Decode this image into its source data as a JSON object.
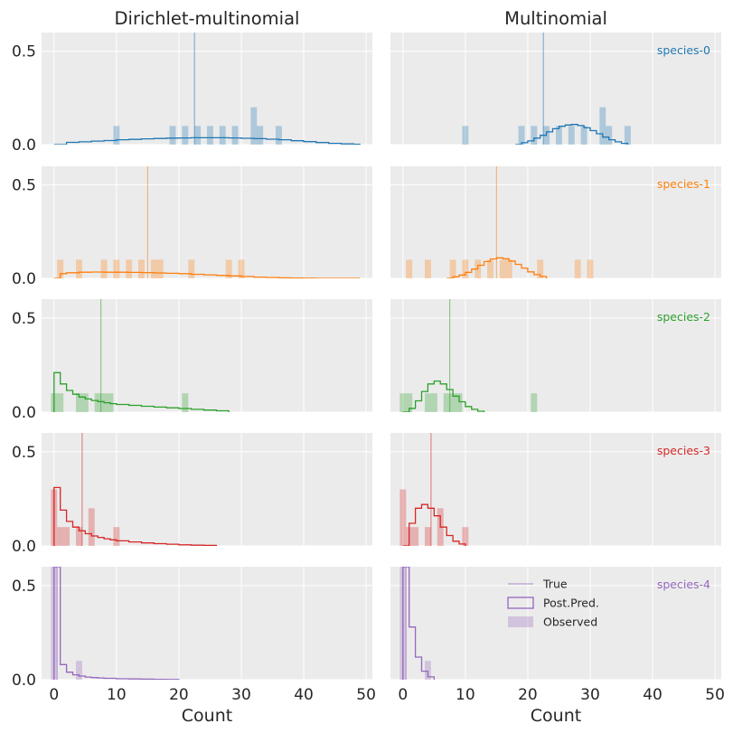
{
  "chart_data": {
    "type": "histogram-grid",
    "columns": [
      "Dirichlet-multinomial",
      "Multinomial"
    ],
    "xlabel": "Count",
    "xlim": [
      -2,
      51
    ],
    "ylim": [
      0,
      0.6
    ],
    "x_ticks": [
      0,
      10,
      20,
      30,
      40,
      50
    ],
    "y_ticks": [
      0,
      0.5
    ],
    "grid": true,
    "legend": {
      "location": "bottom-right panel, upper area",
      "entries": [
        {
          "label": "True",
          "kind": "line"
        },
        {
          "label": "Post.Pred.",
          "kind": "step"
        },
        {
          "label": "Observed",
          "kind": "bar"
        }
      ]
    },
    "species": [
      {
        "name": "species-0",
        "color": "#1f77b4",
        "true_value": 22.5,
        "observed": [
          [
            10,
            0.1
          ],
          [
            19,
            0.1
          ],
          [
            21,
            0.1
          ],
          [
            23,
            0.1
          ],
          [
            25,
            0.1
          ],
          [
            27,
            0.1
          ],
          [
            29,
            0.1
          ],
          [
            32,
            0.2
          ],
          [
            33,
            0.1
          ],
          [
            36,
            0.1
          ]
        ],
        "dm_postpred": [
          [
            0,
            0.0
          ],
          [
            2,
            0.012
          ],
          [
            4,
            0.015
          ],
          [
            6,
            0.019
          ],
          [
            8,
            0.022
          ],
          [
            10,
            0.026
          ],
          [
            12,
            0.028
          ],
          [
            14,
            0.031
          ],
          [
            16,
            0.033
          ],
          [
            18,
            0.035
          ],
          [
            20,
            0.036
          ],
          [
            22,
            0.037
          ],
          [
            24,
            0.037
          ],
          [
            26,
            0.037
          ],
          [
            28,
            0.036
          ],
          [
            30,
            0.034
          ],
          [
            32,
            0.032
          ],
          [
            34,
            0.029
          ],
          [
            36,
            0.026
          ],
          [
            38,
            0.021
          ],
          [
            40,
            0.016
          ],
          [
            42,
            0.011
          ],
          [
            44,
            0.007
          ],
          [
            46,
            0.004
          ],
          [
            48,
            0.002
          ],
          [
            49,
            0.0
          ]
        ],
        "m_postpred": [
          [
            18,
            0.0
          ],
          [
            19,
            0.01
          ],
          [
            20,
            0.02
          ],
          [
            21,
            0.035
          ],
          [
            22,
            0.05
          ],
          [
            23,
            0.068
          ],
          [
            24,
            0.085
          ],
          [
            25,
            0.098
          ],
          [
            26,
            0.105
          ],
          [
            27,
            0.108
          ],
          [
            28,
            0.102
          ],
          [
            29,
            0.09
          ],
          [
            30,
            0.075
          ],
          [
            31,
            0.058
          ],
          [
            32,
            0.04
          ],
          [
            33,
            0.026
          ],
          [
            34,
            0.015
          ],
          [
            35,
            0.007
          ],
          [
            36,
            0.0
          ]
        ]
      },
      {
        "name": "species-1",
        "color": "#ff7f0e",
        "true_value": 15,
        "observed": [
          [
            1,
            0.1
          ],
          [
            4,
            0.1
          ],
          [
            8,
            0.1
          ],
          [
            10,
            0.1
          ],
          [
            12,
            0.1
          ],
          [
            14,
            0.1
          ],
          [
            16,
            0.1
          ],
          [
            17,
            0.1
          ],
          [
            22,
            0.1
          ],
          [
            28,
            0.1
          ],
          [
            30,
            0.1
          ]
        ],
        "dm_postpred": [
          [
            0,
            0.0
          ],
          [
            1,
            0.025
          ],
          [
            2,
            0.03
          ],
          [
            4,
            0.033
          ],
          [
            6,
            0.034
          ],
          [
            8,
            0.033
          ],
          [
            10,
            0.033
          ],
          [
            12,
            0.032
          ],
          [
            14,
            0.031
          ],
          [
            16,
            0.029
          ],
          [
            18,
            0.027
          ],
          [
            20,
            0.025
          ],
          [
            22,
            0.022
          ],
          [
            24,
            0.019
          ],
          [
            26,
            0.016
          ],
          [
            28,
            0.013
          ],
          [
            30,
            0.01
          ],
          [
            32,
            0.007
          ],
          [
            34,
            0.005
          ],
          [
            36,
            0.003
          ],
          [
            38,
            0.002
          ],
          [
            40,
            0.001
          ],
          [
            42,
            0.0
          ],
          [
            49,
            0.0
          ]
        ],
        "m_postpred": [
          [
            7,
            0.0
          ],
          [
            8,
            0.008
          ],
          [
            9,
            0.018
          ],
          [
            10,
            0.032
          ],
          [
            11,
            0.05
          ],
          [
            12,
            0.07
          ],
          [
            13,
            0.09
          ],
          [
            14,
            0.104
          ],
          [
            15,
            0.11
          ],
          [
            16,
            0.105
          ],
          [
            17,
            0.093
          ],
          [
            18,
            0.075
          ],
          [
            19,
            0.055
          ],
          [
            20,
            0.035
          ],
          [
            21,
            0.02
          ],
          [
            22,
            0.01
          ],
          [
            23,
            0.0
          ]
        ]
      },
      {
        "name": "species-2",
        "color": "#2ca02c",
        "true_value": 7.5,
        "observed": [
          [
            0,
            0.1
          ],
          [
            1,
            0.1
          ],
          [
            4,
            0.1
          ],
          [
            5,
            0.1
          ],
          [
            7,
            0.1
          ],
          [
            8,
            0.1
          ],
          [
            9,
            0.1
          ],
          [
            21,
            0.1
          ]
        ],
        "dm_postpred": [
          [
            0,
            0.21
          ],
          [
            1,
            0.15
          ],
          [
            2,
            0.115
          ],
          [
            3,
            0.095
          ],
          [
            4,
            0.08
          ],
          [
            5,
            0.07
          ],
          [
            6,
            0.062
          ],
          [
            7,
            0.056
          ],
          [
            8,
            0.05
          ],
          [
            9,
            0.045
          ],
          [
            10,
            0.041
          ],
          [
            12,
            0.036
          ],
          [
            14,
            0.031
          ],
          [
            16,
            0.027
          ],
          [
            18,
            0.023
          ],
          [
            20,
            0.019
          ],
          [
            22,
            0.015
          ],
          [
            24,
            0.011
          ],
          [
            26,
            0.007
          ],
          [
            28,
            0.0
          ]
        ],
        "m_postpred": [
          [
            0,
            0.0
          ],
          [
            1,
            0.02
          ],
          [
            2,
            0.06
          ],
          [
            3,
            0.11
          ],
          [
            4,
            0.15
          ],
          [
            5,
            0.165
          ],
          [
            6,
            0.15
          ],
          [
            7,
            0.12
          ],
          [
            8,
            0.085
          ],
          [
            9,
            0.055
          ],
          [
            10,
            0.03
          ],
          [
            11,
            0.015
          ],
          [
            12,
            0.005
          ],
          [
            13,
            0.0
          ]
        ]
      },
      {
        "name": "species-3",
        "color": "#d62728",
        "true_value": 4.5,
        "observed": [
          [
            0,
            0.3
          ],
          [
            1,
            0.1
          ],
          [
            2,
            0.1
          ],
          [
            4,
            0.1
          ],
          [
            6,
            0.2
          ],
          [
            10,
            0.1
          ]
        ],
        "dm_postpred": [
          [
            0,
            0.31
          ],
          [
            1,
            0.19
          ],
          [
            2,
            0.13
          ],
          [
            3,
            0.1
          ],
          [
            4,
            0.08
          ],
          [
            5,
            0.065
          ],
          [
            6,
            0.053
          ],
          [
            7,
            0.045
          ],
          [
            8,
            0.038
          ],
          [
            9,
            0.032
          ],
          [
            10,
            0.027
          ],
          [
            12,
            0.021
          ],
          [
            14,
            0.016
          ],
          [
            16,
            0.012
          ],
          [
            18,
            0.009
          ],
          [
            20,
            0.006
          ],
          [
            22,
            0.004
          ],
          [
            24,
            0.003
          ],
          [
            26,
            0.0
          ]
        ],
        "m_postpred": [
          [
            0,
            0.0
          ],
          [
            1,
            0.12
          ],
          [
            2,
            0.2
          ],
          [
            3,
            0.22
          ],
          [
            4,
            0.2
          ],
          [
            5,
            0.16
          ],
          [
            6,
            0.1
          ],
          [
            7,
            0.055
          ],
          [
            8,
            0.025
          ],
          [
            9,
            0.01
          ],
          [
            10,
            0.0
          ]
        ]
      },
      {
        "name": "species-4",
        "color": "#9467bd",
        "true_value": 0.5,
        "observed": [
          [
            0,
            0.6
          ],
          [
            4,
            0.1
          ]
        ],
        "dm_postpred": [
          [
            0,
            0.6
          ],
          [
            1,
            0.08
          ],
          [
            2,
            0.04
          ],
          [
            3,
            0.026
          ],
          [
            4,
            0.019
          ],
          [
            5,
            0.014
          ],
          [
            6,
            0.011
          ],
          [
            7,
            0.009
          ],
          [
            8,
            0.007
          ],
          [
            10,
            0.005
          ],
          [
            12,
            0.004
          ],
          [
            14,
            0.003
          ],
          [
            16,
            0.002
          ],
          [
            18,
            0.001
          ],
          [
            20,
            0.0
          ]
        ],
        "m_postpred": [
          [
            0,
            0.6
          ],
          [
            1,
            0.28
          ],
          [
            2,
            0.12
          ],
          [
            3,
            0.045
          ],
          [
            4,
            0.015
          ],
          [
            5,
            0.0
          ]
        ]
      }
    ]
  }
}
